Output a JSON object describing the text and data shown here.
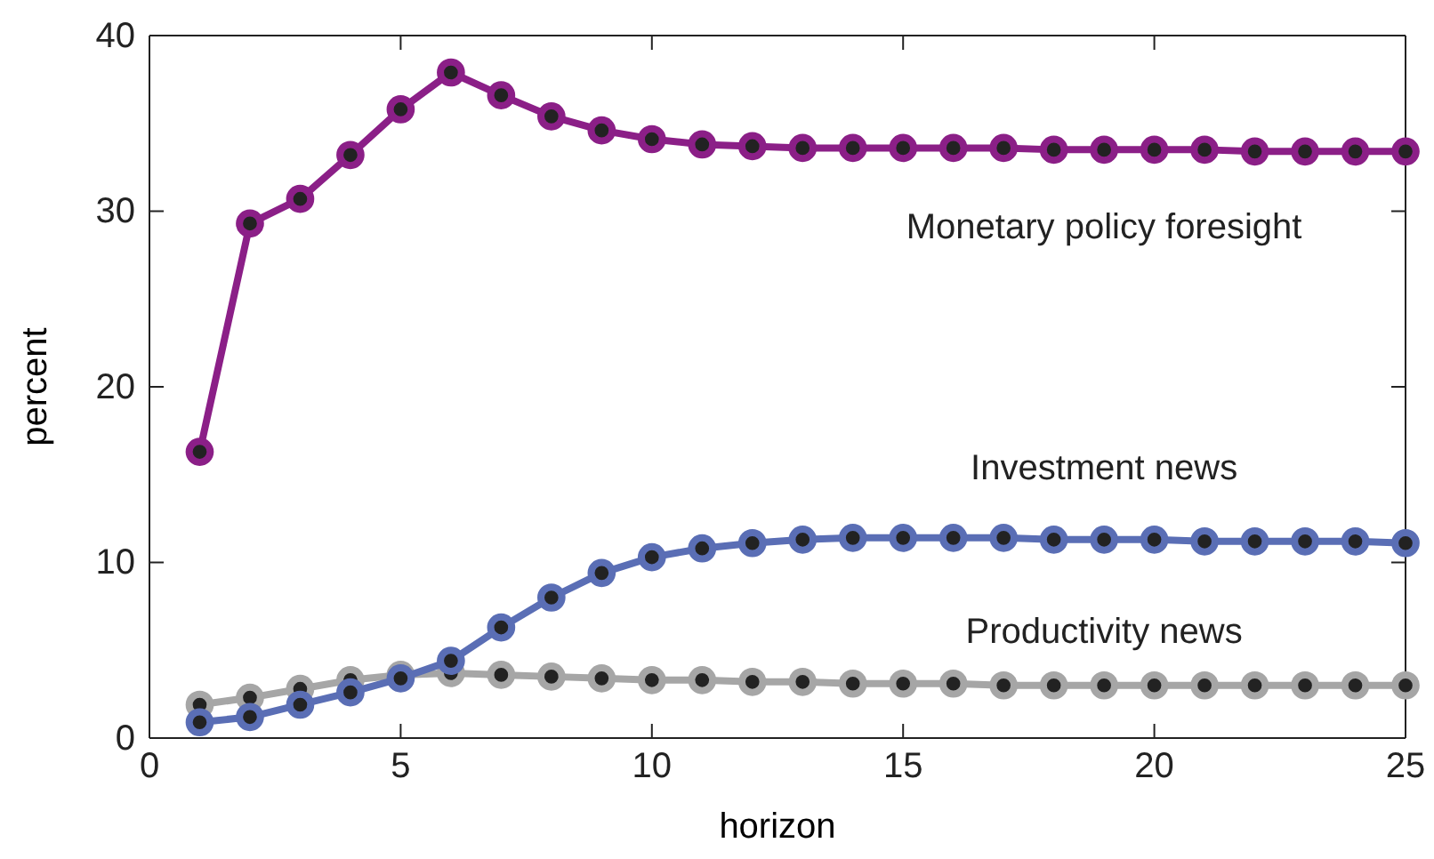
{
  "chart_data": {
    "type": "line",
    "xlabel": "horizon",
    "ylabel": "percent",
    "x": [
      1,
      2,
      3,
      4,
      5,
      6,
      7,
      8,
      9,
      10,
      11,
      12,
      13,
      14,
      15,
      16,
      17,
      18,
      19,
      20,
      21,
      22,
      23,
      24,
      25
    ],
    "xlim": [
      0,
      25
    ],
    "xticks": [
      0,
      5,
      10,
      15,
      20,
      25
    ],
    "ylim": [
      0,
      40
    ],
    "yticks": [
      0,
      10,
      20,
      30,
      40
    ],
    "grid": false,
    "legend": false,
    "marker": "circle",
    "line_style": "solid",
    "series": [
      {
        "name": "Monetary policy foresight",
        "color": "#8b1f87",
        "values": [
          16.3,
          29.3,
          30.7,
          33.2,
          35.8,
          37.9,
          36.6,
          35.4,
          34.6,
          34.1,
          33.8,
          33.7,
          33.6,
          33.6,
          33.6,
          33.6,
          33.6,
          33.5,
          33.5,
          33.5,
          33.5,
          33.4,
          33.4,
          33.4,
          33.4
        ]
      },
      {
        "name": "Investment news",
        "color": "#5a6eb5",
        "values": [
          0.9,
          1.2,
          1.9,
          2.6,
          3.4,
          4.4,
          6.3,
          8.0,
          9.4,
          10.3,
          10.8,
          11.1,
          11.3,
          11.4,
          11.4,
          11.4,
          11.4,
          11.3,
          11.3,
          11.3,
          11.2,
          11.2,
          11.2,
          11.2,
          11.1
        ]
      },
      {
        "name": "Productivity news",
        "color": "#a6a6a6",
        "values": [
          1.9,
          2.3,
          2.8,
          3.3,
          3.6,
          3.7,
          3.6,
          3.5,
          3.4,
          3.3,
          3.3,
          3.2,
          3.2,
          3.1,
          3.1,
          3.1,
          3.0,
          3.0,
          3.0,
          3.0,
          3.0,
          3.0,
          3.0,
          3.0,
          3.0
        ]
      }
    ]
  }
}
